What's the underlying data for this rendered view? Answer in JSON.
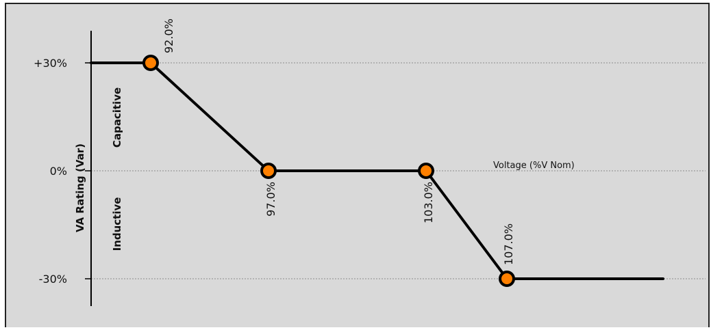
{
  "chart_data": {
    "type": "line",
    "ylabel": "VA Rating (Var)",
    "xlabel": "Voltage (%V Nom)",
    "region_labels": {
      "upper": "Capacitive",
      "lower": "Inductive"
    },
    "y_ticks": [
      {
        "value": 30,
        "label": "+30%"
      },
      {
        "value": 0,
        "label": "0%"
      },
      {
        "value": -30,
        "label": "-30%"
      }
    ],
    "ylim": [
      -30,
      30
    ],
    "points": [
      {
        "x": 92.0,
        "y": 30,
        "label": "92.0%"
      },
      {
        "x": 97.0,
        "y": 0,
        "label": "97.0%"
      },
      {
        "x": 103.0,
        "y": 0,
        "label": "103.0%"
      },
      {
        "x": 107.0,
        "y": -30,
        "label": "107.0%"
      }
    ],
    "grid": true,
    "colors": {
      "background": "#d9d9d9",
      "line": "#000000",
      "marker_fill": "#ff8000",
      "gridline": "#8c8c8c"
    }
  }
}
